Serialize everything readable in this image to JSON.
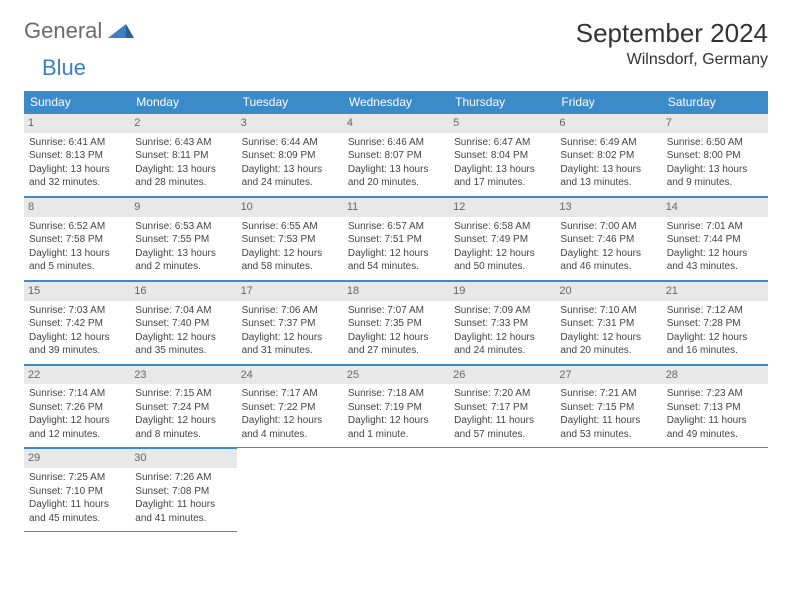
{
  "logo": {
    "part1": "General",
    "part2": "Blue"
  },
  "title": "September 2024",
  "location": "Wilnsdorf, Germany",
  "colors": {
    "headerBg": "#3b8bc9",
    "dayBg": "#e8e8e8",
    "accent": "#3b7fc4"
  },
  "weekdays": [
    "Sunday",
    "Monday",
    "Tuesday",
    "Wednesday",
    "Thursday",
    "Friday",
    "Saturday"
  ],
  "weeks": [
    [
      {
        "n": "1",
        "sr": "Sunrise: 6:41 AM",
        "ss": "Sunset: 8:13 PM",
        "dl": "Daylight: 13 hours and 32 minutes."
      },
      {
        "n": "2",
        "sr": "Sunrise: 6:43 AM",
        "ss": "Sunset: 8:11 PM",
        "dl": "Daylight: 13 hours and 28 minutes."
      },
      {
        "n": "3",
        "sr": "Sunrise: 6:44 AM",
        "ss": "Sunset: 8:09 PM",
        "dl": "Daylight: 13 hours and 24 minutes."
      },
      {
        "n": "4",
        "sr": "Sunrise: 6:46 AM",
        "ss": "Sunset: 8:07 PM",
        "dl": "Daylight: 13 hours and 20 minutes."
      },
      {
        "n": "5",
        "sr": "Sunrise: 6:47 AM",
        "ss": "Sunset: 8:04 PM",
        "dl": "Daylight: 13 hours and 17 minutes."
      },
      {
        "n": "6",
        "sr": "Sunrise: 6:49 AM",
        "ss": "Sunset: 8:02 PM",
        "dl": "Daylight: 13 hours and 13 minutes."
      },
      {
        "n": "7",
        "sr": "Sunrise: 6:50 AM",
        "ss": "Sunset: 8:00 PM",
        "dl": "Daylight: 13 hours and 9 minutes."
      }
    ],
    [
      {
        "n": "8",
        "sr": "Sunrise: 6:52 AM",
        "ss": "Sunset: 7:58 PM",
        "dl": "Daylight: 13 hours and 5 minutes."
      },
      {
        "n": "9",
        "sr": "Sunrise: 6:53 AM",
        "ss": "Sunset: 7:55 PM",
        "dl": "Daylight: 13 hours and 2 minutes."
      },
      {
        "n": "10",
        "sr": "Sunrise: 6:55 AM",
        "ss": "Sunset: 7:53 PM",
        "dl": "Daylight: 12 hours and 58 minutes."
      },
      {
        "n": "11",
        "sr": "Sunrise: 6:57 AM",
        "ss": "Sunset: 7:51 PM",
        "dl": "Daylight: 12 hours and 54 minutes."
      },
      {
        "n": "12",
        "sr": "Sunrise: 6:58 AM",
        "ss": "Sunset: 7:49 PM",
        "dl": "Daylight: 12 hours and 50 minutes."
      },
      {
        "n": "13",
        "sr": "Sunrise: 7:00 AM",
        "ss": "Sunset: 7:46 PM",
        "dl": "Daylight: 12 hours and 46 minutes."
      },
      {
        "n": "14",
        "sr": "Sunrise: 7:01 AM",
        "ss": "Sunset: 7:44 PM",
        "dl": "Daylight: 12 hours and 43 minutes."
      }
    ],
    [
      {
        "n": "15",
        "sr": "Sunrise: 7:03 AM",
        "ss": "Sunset: 7:42 PM",
        "dl": "Daylight: 12 hours and 39 minutes."
      },
      {
        "n": "16",
        "sr": "Sunrise: 7:04 AM",
        "ss": "Sunset: 7:40 PM",
        "dl": "Daylight: 12 hours and 35 minutes."
      },
      {
        "n": "17",
        "sr": "Sunrise: 7:06 AM",
        "ss": "Sunset: 7:37 PM",
        "dl": "Daylight: 12 hours and 31 minutes."
      },
      {
        "n": "18",
        "sr": "Sunrise: 7:07 AM",
        "ss": "Sunset: 7:35 PM",
        "dl": "Daylight: 12 hours and 27 minutes."
      },
      {
        "n": "19",
        "sr": "Sunrise: 7:09 AM",
        "ss": "Sunset: 7:33 PM",
        "dl": "Daylight: 12 hours and 24 minutes."
      },
      {
        "n": "20",
        "sr": "Sunrise: 7:10 AM",
        "ss": "Sunset: 7:31 PM",
        "dl": "Daylight: 12 hours and 20 minutes."
      },
      {
        "n": "21",
        "sr": "Sunrise: 7:12 AM",
        "ss": "Sunset: 7:28 PM",
        "dl": "Daylight: 12 hours and 16 minutes."
      }
    ],
    [
      {
        "n": "22",
        "sr": "Sunrise: 7:14 AM",
        "ss": "Sunset: 7:26 PM",
        "dl": "Daylight: 12 hours and 12 minutes."
      },
      {
        "n": "23",
        "sr": "Sunrise: 7:15 AM",
        "ss": "Sunset: 7:24 PM",
        "dl": "Daylight: 12 hours and 8 minutes."
      },
      {
        "n": "24",
        "sr": "Sunrise: 7:17 AM",
        "ss": "Sunset: 7:22 PM",
        "dl": "Daylight: 12 hours and 4 minutes."
      },
      {
        "n": "25",
        "sr": "Sunrise: 7:18 AM",
        "ss": "Sunset: 7:19 PM",
        "dl": "Daylight: 12 hours and 1 minute."
      },
      {
        "n": "26",
        "sr": "Sunrise: 7:20 AM",
        "ss": "Sunset: 7:17 PM",
        "dl": "Daylight: 11 hours and 57 minutes."
      },
      {
        "n": "27",
        "sr": "Sunrise: 7:21 AM",
        "ss": "Sunset: 7:15 PM",
        "dl": "Daylight: 11 hours and 53 minutes."
      },
      {
        "n": "28",
        "sr": "Sunrise: 7:23 AM",
        "ss": "Sunset: 7:13 PM",
        "dl": "Daylight: 11 hours and 49 minutes."
      }
    ],
    [
      {
        "n": "29",
        "sr": "Sunrise: 7:25 AM",
        "ss": "Sunset: 7:10 PM",
        "dl": "Daylight: 11 hours and 45 minutes."
      },
      {
        "n": "30",
        "sr": "Sunrise: 7:26 AM",
        "ss": "Sunset: 7:08 PM",
        "dl": "Daylight: 11 hours and 41 minutes."
      },
      null,
      null,
      null,
      null,
      null
    ]
  ]
}
